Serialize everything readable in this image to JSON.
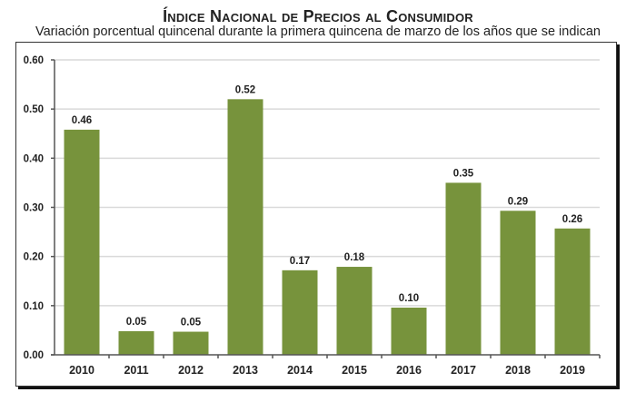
{
  "chart_data": {
    "type": "bar",
    "title": "Índice Nacional de Precios al Consumidor",
    "subtitle": "Variación porcentual quincenal durante la primera quincena de marzo de los años que se indican",
    "xlabel": "",
    "ylabel": "",
    "ylim": [
      0,
      0.6
    ],
    "yticks": [
      "0.00",
      "0.10",
      "0.20",
      "0.30",
      "0.40",
      "0.50",
      "0.60"
    ],
    "grid": true,
    "legend": "none",
    "categories": [
      "2010",
      "2011",
      "2012",
      "2013",
      "2014",
      "2015",
      "2016",
      "2017",
      "2018",
      "2019"
    ],
    "values": [
      0.458,
      0.048,
      0.047,
      0.52,
      0.172,
      0.179,
      0.096,
      0.35,
      0.293,
      0.257
    ],
    "data_labels": [
      "0.46",
      "0.05",
      "0.05",
      "0.52",
      "0.17",
      "0.18",
      "0.10",
      "0.35",
      "0.29",
      "0.26"
    ],
    "bar_color": "#77933c"
  }
}
